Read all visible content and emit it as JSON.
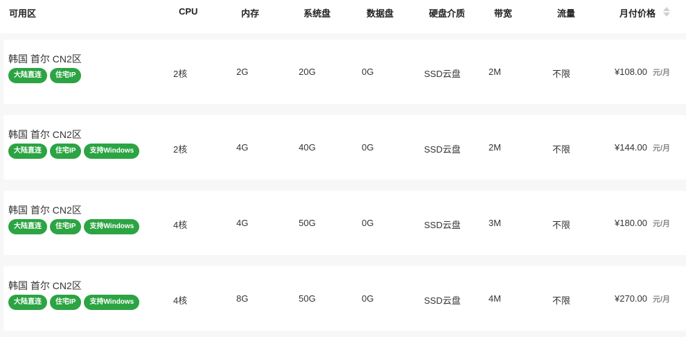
{
  "header": {
    "zone": "可用区",
    "cpu": "CPU",
    "memory": "内存",
    "system_disk": "系统盘",
    "data_disk": "数据盘",
    "disk_type": "硬盘介质",
    "bandwidth": "带宽",
    "traffic": "流量",
    "monthly_price": "月付价格"
  },
  "sort_icon": "sort-icon",
  "tag_color": "#2ca443",
  "rows": [
    {
      "zone": "韩国 首尔 CN2区",
      "tags": [
        "大陆直连",
        "住宅IP"
      ],
      "cpu": "2核",
      "memory": "2G",
      "system_disk": "20G",
      "data_disk": "0G",
      "disk_type": "SSD云盘",
      "bandwidth": "2M",
      "traffic": "不限",
      "price": "¥108.00",
      "unit": "元/月"
    },
    {
      "zone": "韩国 首尔 CN2区",
      "tags": [
        "大陆直连",
        "住宅IP",
        "支持Windows"
      ],
      "cpu": "2核",
      "memory": "4G",
      "system_disk": "40G",
      "data_disk": "0G",
      "disk_type": "SSD云盘",
      "bandwidth": "2M",
      "traffic": "不限",
      "price": "¥144.00",
      "unit": "元/月"
    },
    {
      "zone": "韩国 首尔 CN2区",
      "tags": [
        "大陆直连",
        "住宅IP",
        "支持Windows"
      ],
      "cpu": "4核",
      "memory": "4G",
      "system_disk": "50G",
      "data_disk": "0G",
      "disk_type": "SSD云盘",
      "bandwidth": "3M",
      "traffic": "不限",
      "price": "¥180.00",
      "unit": "元/月"
    },
    {
      "zone": "韩国 首尔 CN2区",
      "tags": [
        "大陆直连",
        "住宅IP",
        "支持Windows"
      ],
      "cpu": "4核",
      "memory": "8G",
      "system_disk": "50G",
      "data_disk": "0G",
      "disk_type": "SSD云盘",
      "bandwidth": "4M",
      "traffic": "不限",
      "price": "¥270.00",
      "unit": "元/月"
    }
  ]
}
